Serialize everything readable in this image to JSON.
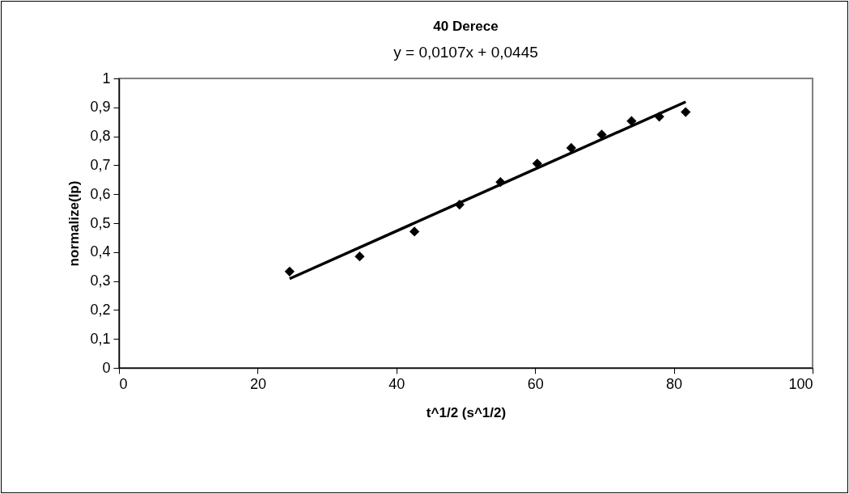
{
  "chart_data": {
    "type": "scatter",
    "title": "40 Derece",
    "annotations": [
      "y = 0,0107x + 0,0445"
    ],
    "xlabel": "t^1/2 (s^1/2)",
    "ylabel": "normalize(Ip)",
    "x": [
      24.6,
      34.7,
      42.6,
      49.1,
      55.0,
      60.3,
      65.2,
      69.6,
      73.9,
      77.9,
      81.7
    ],
    "series": [
      {
        "color": "#000000",
        "marker": "diamond",
        "values": [
          0.333,
          0.385,
          0.471,
          0.564,
          0.642,
          0.706,
          0.76,
          0.806,
          0.853,
          0.868,
          0.884
        ]
      },
      {
        "type": "line",
        "color": "#000000",
        "marker": "none",
        "line_style": "solid",
        "x": [
          24.6,
          81.7
        ],
        "values": [
          0.308,
          0.919
        ]
      }
    ],
    "xlim": [
      0,
      100
    ],
    "xticks": [
      0,
      20,
      40,
      60,
      80,
      100
    ],
    "ylim": [
      0,
      1
    ],
    "yticks": [
      0,
      {
        "value": 0.1,
        "label": "0,1"
      },
      {
        "value": 0.2,
        "label": "0,2"
      },
      {
        "value": 0.3,
        "label": "0,3"
      },
      {
        "value": 0.4,
        "label": "0,4"
      },
      {
        "value": 0.5,
        "label": "0,5"
      },
      {
        "value": 0.6,
        "label": "0,6"
      },
      {
        "value": 0.7,
        "label": "0,7"
      },
      {
        "value": 0.8,
        "label": "0,8"
      },
      {
        "value": 0.9,
        "label": "0,9"
      },
      1
    ],
    "grid": false
  }
}
